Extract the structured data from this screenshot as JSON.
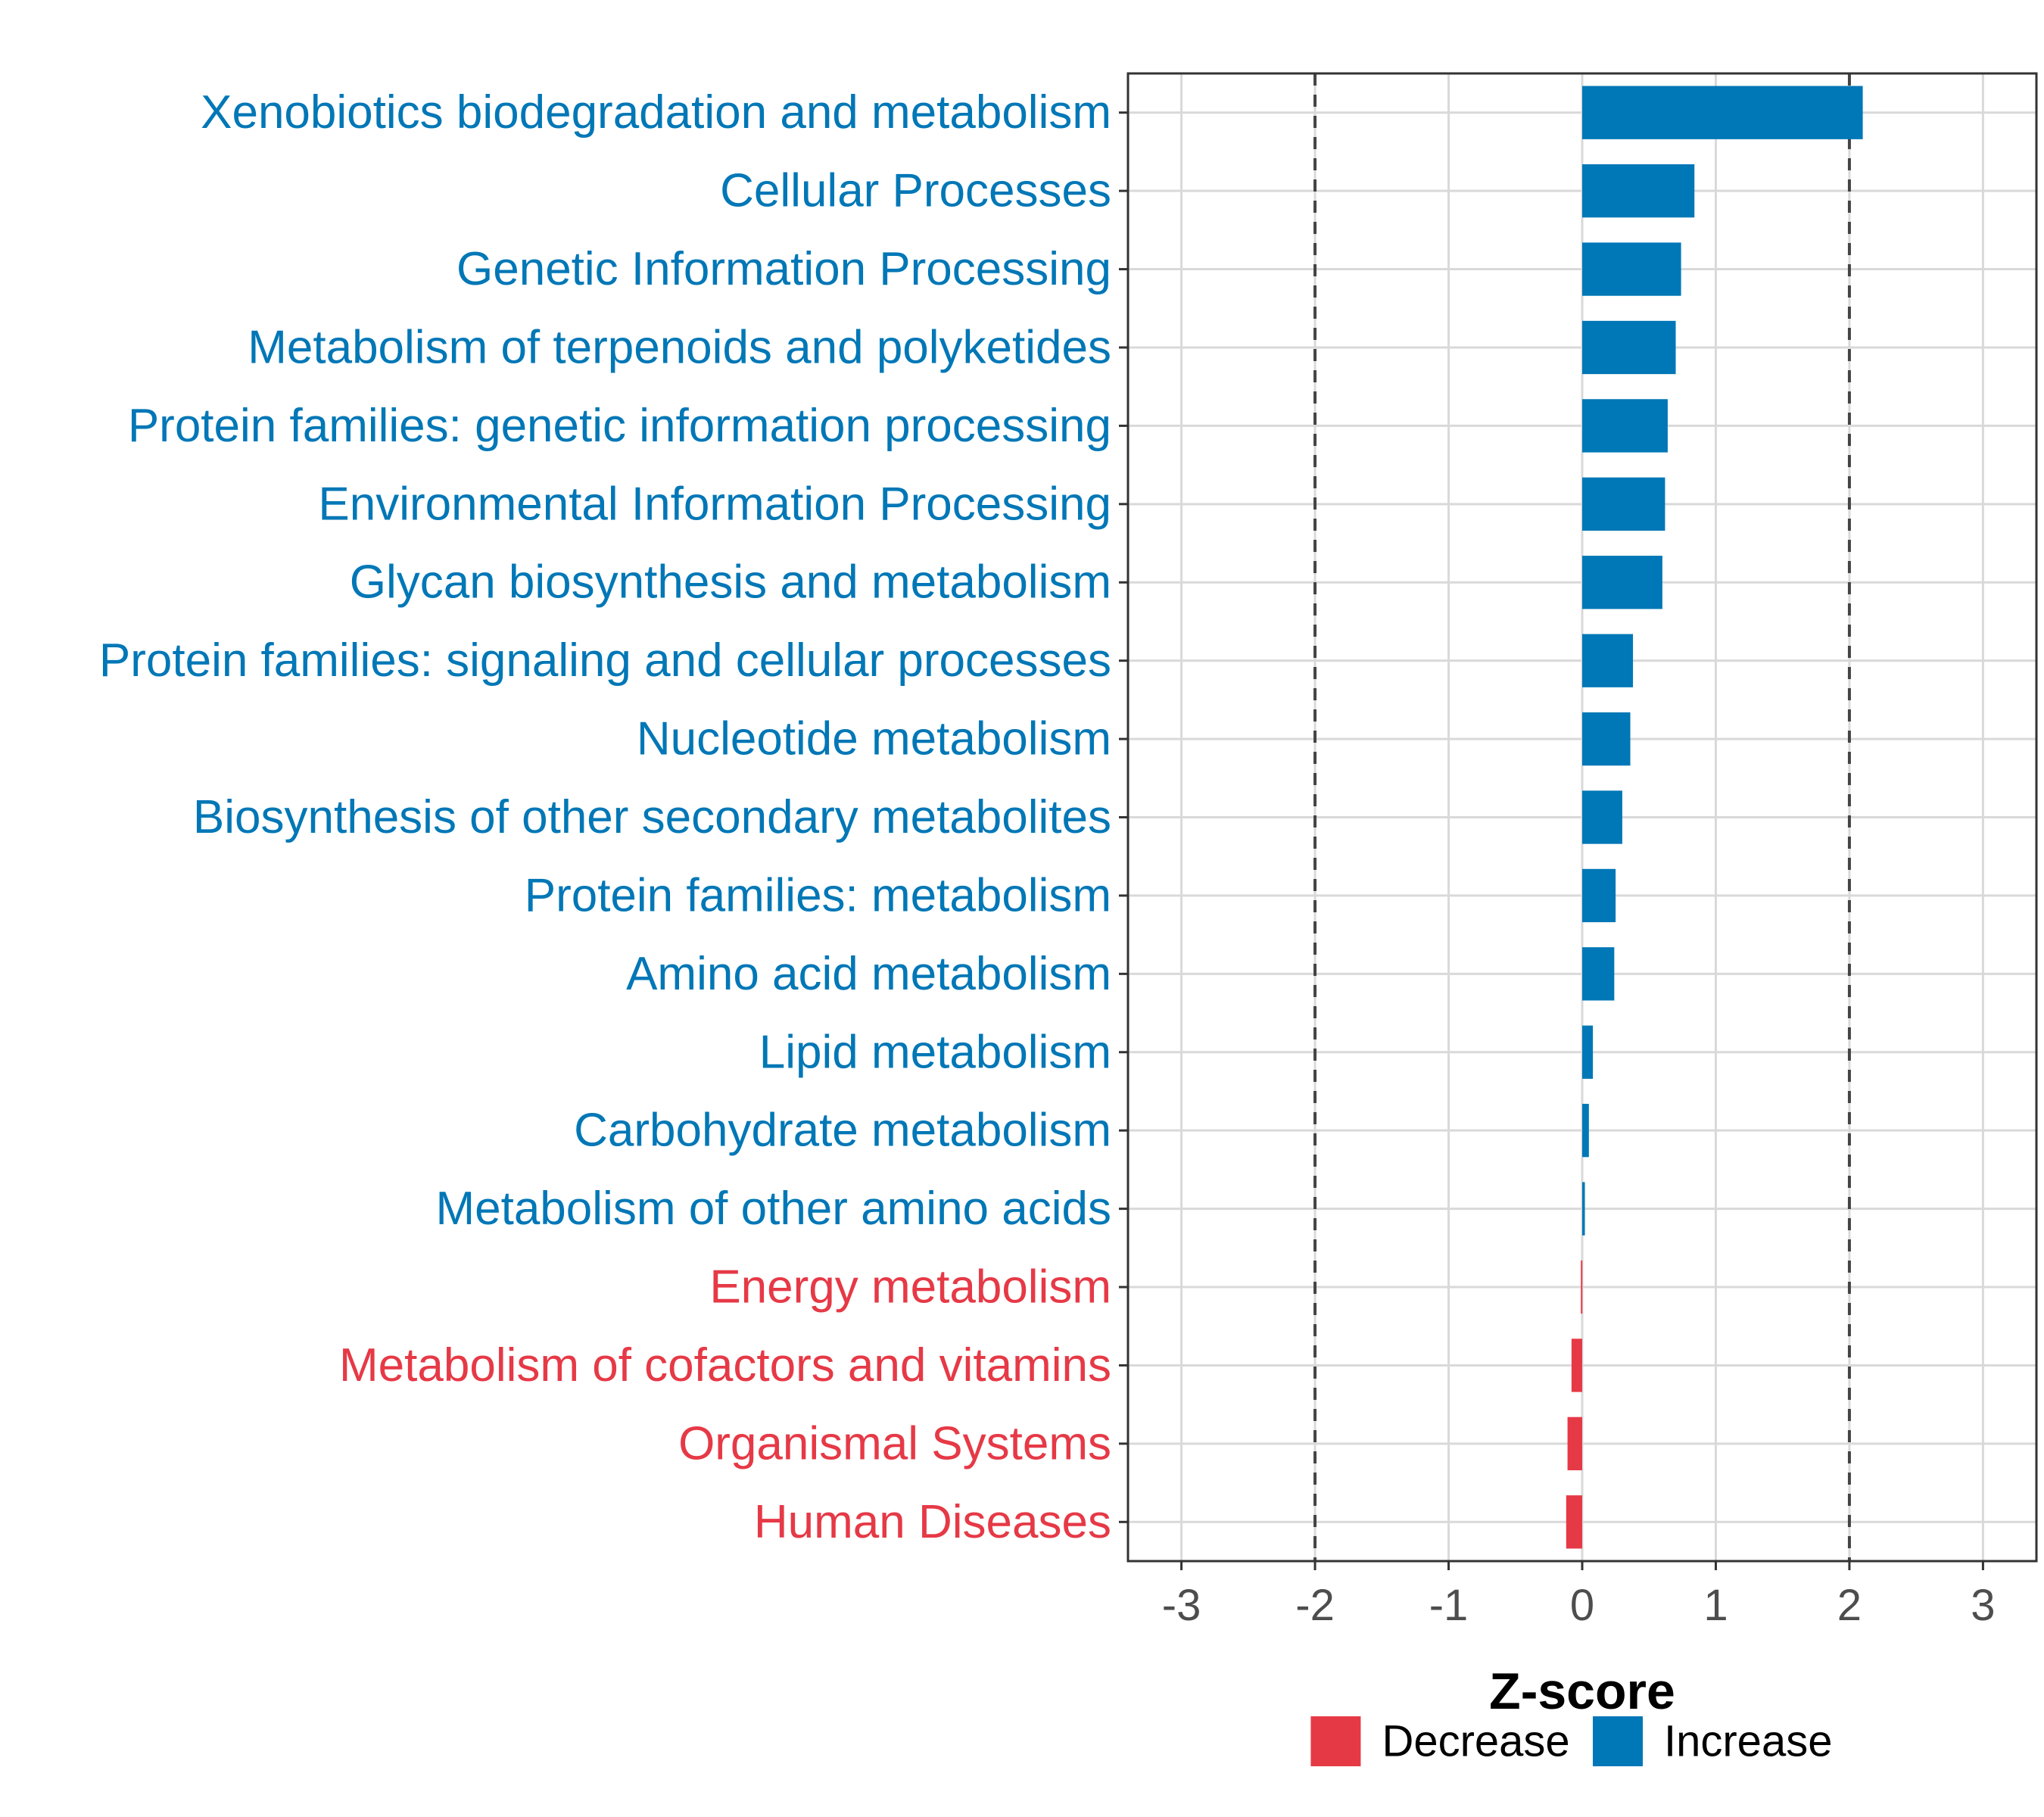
{
  "chart_data": {
    "type": "bar",
    "orientation": "horizontal",
    "xlabel": "Z-score",
    "ylabel": "",
    "xlim": [
      -3.4,
      3.4
    ],
    "x_ticks": [
      -3,
      -2,
      -1,
      0,
      1,
      2,
      3
    ],
    "reference_lines": [
      -2,
      2
    ],
    "grid": true,
    "legend_position": "bottom",
    "categories": [
      "Xenobiotics biodegradation and metabolism",
      "Cellular Processes",
      "Genetic Information Processing",
      "Metabolism of terpenoids and polyketides",
      "Protein families: genetic information processing",
      "Environmental Information Processing",
      "Glycan biosynthesis and metabolism",
      "Protein families: signaling and cellular processes",
      "Nucleotide metabolism",
      "Biosynthesis of other secondary metabolites",
      "Protein families: metabolism",
      "Amino acid metabolism",
      "Lipid metabolism",
      "Carbohydrate metabolism",
      "Metabolism of other amino acids",
      "Energy metabolism",
      "Metabolism of cofactors and vitamins",
      "Organismal Systems",
      "Human Diseases"
    ],
    "values": [
      2.1,
      0.84,
      0.74,
      0.7,
      0.64,
      0.62,
      0.6,
      0.38,
      0.36,
      0.3,
      0.25,
      0.24,
      0.08,
      0.05,
      0.02,
      -0.01,
      -0.08,
      -0.11,
      -0.12
    ],
    "direction": [
      "Increase",
      "Increase",
      "Increase",
      "Increase",
      "Increase",
      "Increase",
      "Increase",
      "Increase",
      "Increase",
      "Increase",
      "Increase",
      "Increase",
      "Increase",
      "Increase",
      "Increase",
      "Decrease",
      "Decrease",
      "Decrease",
      "Decrease"
    ],
    "legend": [
      {
        "name": "Decrease",
        "color": "#e63946"
      },
      {
        "name": "Increase",
        "color": "#0077b6"
      }
    ]
  }
}
